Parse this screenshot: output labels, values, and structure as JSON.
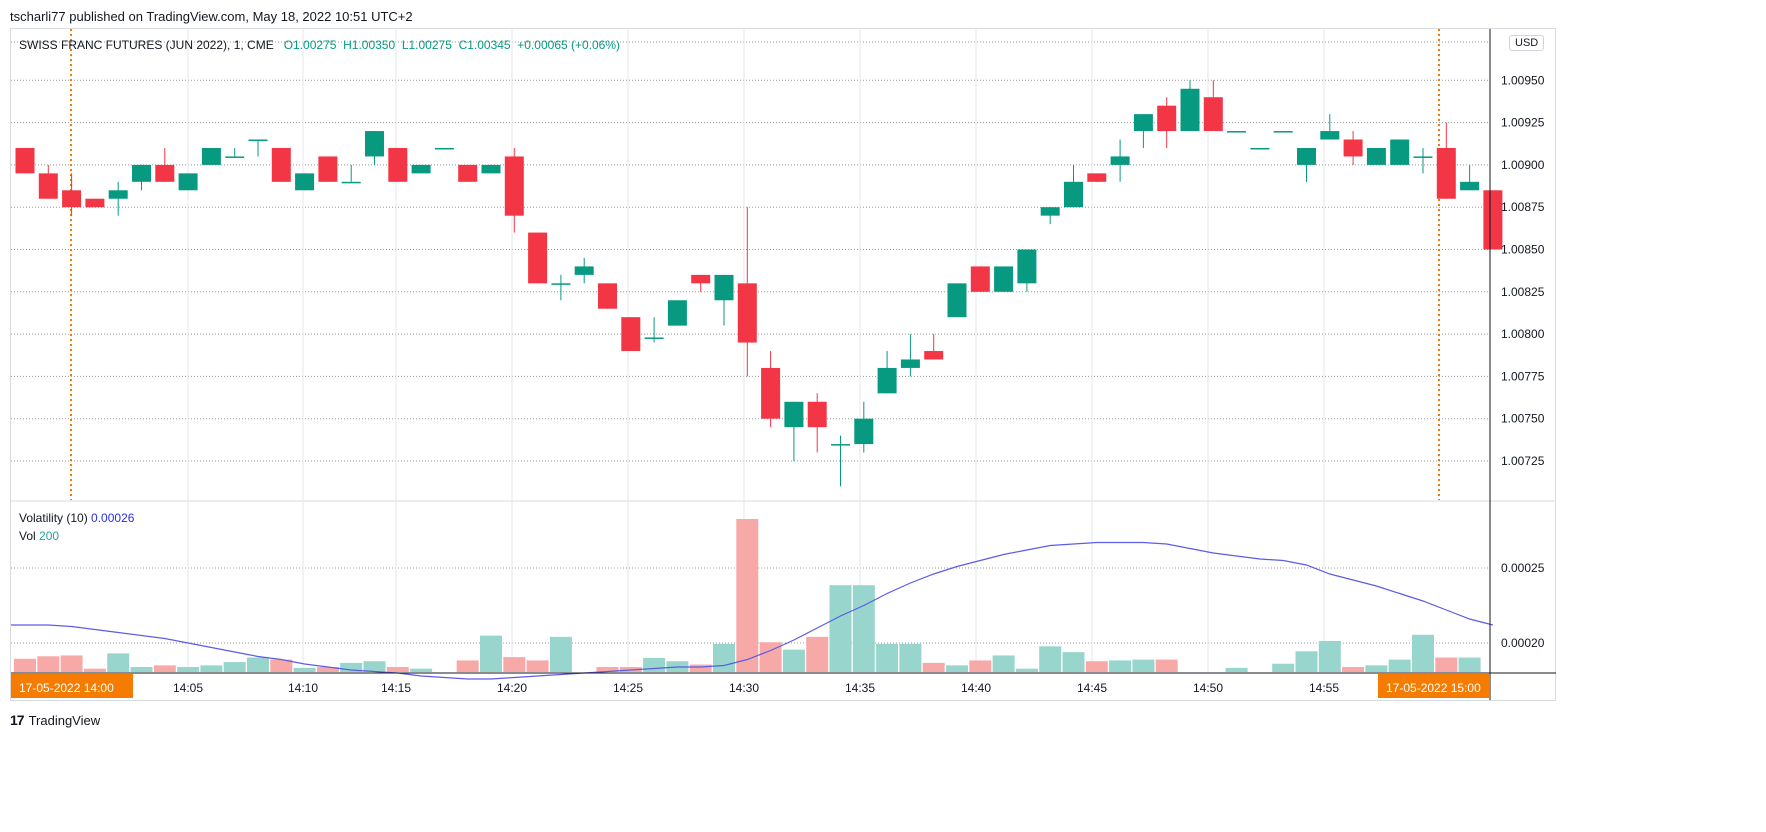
{
  "publisher": {
    "user": "tscharli77",
    "text": "tscharli77 published on TradingView.com, May 18, 2022 10:51 UTC+2"
  },
  "legend": {
    "symbol": "SWISS FRANC FUTURES (JUN 2022), 1, CME",
    "open": "O1.00275",
    "high": "H1.00350",
    "low": "L1.00275",
    "close": "C1.00345",
    "change": "+0.00065 (+0.06%)"
  },
  "indicators": {
    "volatility_label": "Volatility (10)",
    "volatility_value": "0.00026",
    "vol_label": "Vol",
    "vol_value": "200"
  },
  "currency": "USD",
  "branding": {
    "logo_mark": "17",
    "name": "TradingView"
  },
  "colors": {
    "up": "#089981",
    "down": "#f23645",
    "vol_up": "#97d5cd",
    "vol_down": "#f7a9a7",
    "volatility_line": "#5c5ce6",
    "marker": "#f57c00"
  },
  "markers": {
    "left_label": "17-05-2022   14:00",
    "right_label": "17-05-2022   15:00"
  },
  "chart_data": [
    {
      "type": "candlestick",
      "title": "SWISS FRANC FUTURES (JUN 2022), 1, CME",
      "x_ticks": [
        "14:05",
        "14:10",
        "14:15",
        "14:20",
        "14:25",
        "14:30",
        "14:35",
        "14:40",
        "14:45",
        "14:50",
        "14:55"
      ],
      "y_ticks": [
        "1.00725",
        "1.00750",
        "1.00775",
        "1.00800",
        "1.00825",
        "1.00850",
        "1.00875",
        "1.00900",
        "1.00925",
        "1.00950"
      ],
      "ylim": [
        1.007,
        1.00975
      ],
      "start_time": "13:57",
      "candles": [
        {
          "o": 1.0091,
          "h": 1.0091,
          "l": 1.00895,
          "c": 1.00895
        },
        {
          "o": 1.00895,
          "h": 1.009,
          "l": 1.0088,
          "c": 1.0088
        },
        {
          "o": 1.00885,
          "h": 1.00895,
          "l": 1.0087,
          "c": 1.00875
        },
        {
          "o": 1.0088,
          "h": 1.0088,
          "l": 1.00875,
          "c": 1.00875
        },
        {
          "o": 1.0088,
          "h": 1.0089,
          "l": 1.0087,
          "c": 1.00885
        },
        {
          "o": 1.0089,
          "h": 1.009,
          "l": 1.00885,
          "c": 1.009
        },
        {
          "o": 1.009,
          "h": 1.0091,
          "l": 1.0089,
          "c": 1.0089
        },
        {
          "o": 1.00885,
          "h": 1.00895,
          "l": 1.00885,
          "c": 1.00895
        },
        {
          "o": 1.009,
          "h": 1.0091,
          "l": 1.009,
          "c": 1.0091
        },
        {
          "o": 1.00905,
          "h": 1.0091,
          "l": 1.00905,
          "c": 1.00905
        },
        {
          "o": 1.00915,
          "h": 1.00915,
          "l": 1.00905,
          "c": 1.00915
        },
        {
          "o": 1.0091,
          "h": 1.0091,
          "l": 1.0089,
          "c": 1.0089
        },
        {
          "o": 1.00885,
          "h": 1.00895,
          "l": 1.00885,
          "c": 1.00895
        },
        {
          "o": 1.00905,
          "h": 1.00905,
          "l": 1.0089,
          "c": 1.0089
        },
        {
          "o": 1.0089,
          "h": 1.009,
          "l": 1.0089,
          "c": 1.0089
        },
        {
          "o": 1.00905,
          "h": 1.0092,
          "l": 1.009,
          "c": 1.0092
        },
        {
          "o": 1.0091,
          "h": 1.0091,
          "l": 1.0089,
          "c": 1.0089
        },
        {
          "o": 1.00895,
          "h": 1.009,
          "l": 1.00895,
          "c": 1.009
        },
        {
          "o": 1.0091,
          "h": 1.0091,
          "l": 1.0091,
          "c": 1.0091
        },
        {
          "o": 1.009,
          "h": 1.009,
          "l": 1.0089,
          "c": 1.0089
        },
        {
          "o": 1.00895,
          "h": 1.009,
          "l": 1.00895,
          "c": 1.009
        },
        {
          "o": 1.00905,
          "h": 1.0091,
          "l": 1.0086,
          "c": 1.0087
        },
        {
          "o": 1.0086,
          "h": 1.0086,
          "l": 1.0083,
          "c": 1.0083
        },
        {
          "o": 1.0083,
          "h": 1.00835,
          "l": 1.0082,
          "c": 1.0083
        },
        {
          "o": 1.00835,
          "h": 1.00845,
          "l": 1.0083,
          "c": 1.0084
        },
        {
          "o": 1.0083,
          "h": 1.0083,
          "l": 1.00815,
          "c": 1.00815
        },
        {
          "o": 1.0081,
          "h": 1.0081,
          "l": 1.0079,
          "c": 1.0079
        },
        {
          "o": 1.00798,
          "h": 1.0081,
          "l": 1.00795,
          "c": 1.00798
        },
        {
          "o": 1.00805,
          "h": 1.0082,
          "l": 1.00805,
          "c": 1.0082
        },
        {
          "o": 1.00835,
          "h": 1.00835,
          "l": 1.00825,
          "c": 1.0083
        },
        {
          "o": 1.0082,
          "h": 1.00835,
          "l": 1.00805,
          "c": 1.00835
        },
        {
          "o": 1.0083,
          "h": 1.00875,
          "l": 1.00775,
          "c": 1.00795
        },
        {
          "o": 1.0078,
          "h": 1.0079,
          "l": 1.00745,
          "c": 1.0075
        },
        {
          "o": 1.00745,
          "h": 1.0076,
          "l": 1.00725,
          "c": 1.0076
        },
        {
          "o": 1.0076,
          "h": 1.00765,
          "l": 1.0073,
          "c": 1.00745
        },
        {
          "o": 1.00735,
          "h": 1.0074,
          "l": 1.0071,
          "c": 1.00735
        },
        {
          "o": 1.00735,
          "h": 1.0076,
          "l": 1.0073,
          "c": 1.0075
        },
        {
          "o": 1.00765,
          "h": 1.0079,
          "l": 1.00765,
          "c": 1.0078
        },
        {
          "o": 1.0078,
          "h": 1.008,
          "l": 1.00775,
          "c": 1.00785
        },
        {
          "o": 1.0079,
          "h": 1.008,
          "l": 1.00785,
          "c": 1.00785
        },
        {
          "o": 1.0081,
          "h": 1.0083,
          "l": 1.0081,
          "c": 1.0083
        },
        {
          "o": 1.0084,
          "h": 1.0084,
          "l": 1.00825,
          "c": 1.00825
        },
        {
          "o": 1.00825,
          "h": 1.0084,
          "l": 1.00825,
          "c": 1.0084
        },
        {
          "o": 1.0083,
          "h": 1.0085,
          "l": 1.00825,
          "c": 1.0085
        },
        {
          "o": 1.0087,
          "h": 1.00875,
          "l": 1.00865,
          "c": 1.00875
        },
        {
          "o": 1.00875,
          "h": 1.009,
          "l": 1.00875,
          "c": 1.0089
        },
        {
          "o": 1.00895,
          "h": 1.00895,
          "l": 1.0089,
          "c": 1.0089
        },
        {
          "o": 1.009,
          "h": 1.00915,
          "l": 1.0089,
          "c": 1.00905
        },
        {
          "o": 1.0092,
          "h": 1.0093,
          "l": 1.0091,
          "c": 1.0093
        },
        {
          "o": 1.00935,
          "h": 1.0094,
          "l": 1.0091,
          "c": 1.0092
        },
        {
          "o": 1.0092,
          "h": 1.0095,
          "l": 1.0092,
          "c": 1.00945
        },
        {
          "o": 1.0094,
          "h": 1.0095,
          "l": 1.0092,
          "c": 1.0092
        },
        {
          "o": 1.0092,
          "h": 1.0092,
          "l": 1.0092,
          "c": 1.0092
        },
        {
          "o": 1.0091,
          "h": 1.0091,
          "l": 1.0091,
          "c": 1.0091
        },
        {
          "o": 1.0092,
          "h": 1.0092,
          "l": 1.0092,
          "c": 1.0092
        },
        {
          "o": 1.009,
          "h": 1.0091,
          "l": 1.0089,
          "c": 1.0091
        },
        {
          "o": 1.00915,
          "h": 1.0093,
          "l": 1.00915,
          "c": 1.0092
        },
        {
          "o": 1.00915,
          "h": 1.0092,
          "l": 1.009,
          "c": 1.00905
        },
        {
          "o": 1.009,
          "h": 1.0091,
          "l": 1.009,
          "c": 1.0091
        },
        {
          "o": 1.009,
          "h": 1.00915,
          "l": 1.009,
          "c": 1.00915
        },
        {
          "o": 1.00905,
          "h": 1.0091,
          "l": 1.00895,
          "c": 1.00905
        },
        {
          "o": 1.0091,
          "h": 1.00925,
          "l": 1.0088,
          "c": 1.0088
        },
        {
          "o": 1.00885,
          "h": 1.009,
          "l": 1.00885,
          "c": 1.0089
        },
        {
          "o": 1.00885,
          "h": 1.00885,
          "l": 1.0085,
          "c": 1.0085
        }
      ]
    },
    {
      "type": "bar",
      "title": "Vol",
      "y_ticks": [
        "0.00020",
        "0.00025"
      ],
      "volume": [
        32,
        38,
        40,
        8,
        45,
        12,
        16,
        12,
        16,
        24,
        35,
        30,
        10,
        12,
        22,
        26,
        12,
        8,
        0,
        28,
        88,
        36,
        28,
        85,
        0,
        12,
        12,
        34,
        26,
        18,
        68,
        370,
        72,
        54,
        85,
        210,
        210,
        68,
        68,
        22,
        16,
        28,
        40,
        8,
        62,
        48,
        26,
        28,
        30,
        30,
        0,
        0,
        10,
        0,
        20,
        50,
        75,
        12,
        16,
        30,
        90,
        35,
        35,
        0
      ],
      "volatility": [
        0.000212,
        0.000212,
        0.000211,
        0.000209,
        0.000207,
        0.000205,
        0.000203,
        0.0002,
        0.000197,
        0.000194,
        0.000191,
        0.000189,
        0.000186,
        0.000184,
        0.000182,
        0.000181,
        0.00018,
        0.000178,
        0.000177,
        0.000176,
        0.000176,
        0.000177,
        0.000178,
        0.000179,
        0.00018,
        0.000181,
        0.000182,
        0.000183,
        0.000184,
        0.000184,
        0.000185,
        0.000189,
        0.000195,
        0.000202,
        0.00021,
        0.000218,
        0.000225,
        0.000233,
        0.00024,
        0.000246,
        0.000251,
        0.000255,
        0.000259,
        0.000262,
        0.000265,
        0.000266,
        0.000267,
        0.000267,
        0.000267,
        0.000266,
        0.000263,
        0.00026,
        0.000258,
        0.000256,
        0.000255,
        0.000252,
        0.000246,
        0.000242,
        0.000238,
        0.000233,
        0.000228,
        0.000222,
        0.000216,
        0.000212
      ]
    }
  ]
}
